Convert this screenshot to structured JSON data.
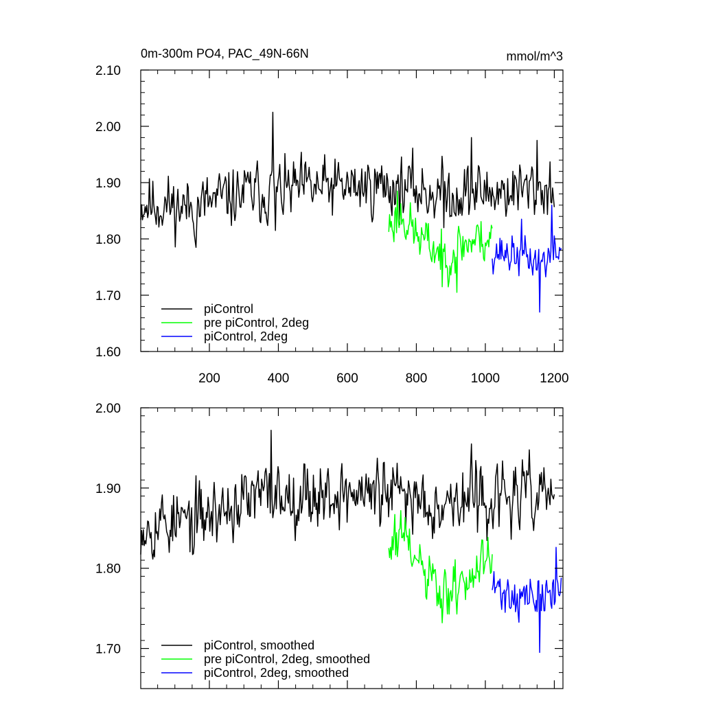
{
  "chart_data": [
    {
      "type": "line",
      "title": "0m-300m PO4, PAC_49N-66N",
      "units": "mmol/m^3",
      "xlim": [
        1,
        1225
      ],
      "ylim": [
        1.6,
        2.1
      ],
      "yticks": [
        "1.60",
        "1.70",
        "1.80",
        "1.90",
        "2.00",
        "2.10"
      ],
      "ytick_values": [
        1.6,
        1.7,
        1.8,
        1.9,
        2.0,
        2.1
      ],
      "xticks": [
        "200",
        "400",
        "600",
        "800",
        "1000",
        "1200"
      ],
      "xtick_values": [
        200,
        400,
        600,
        800,
        1000,
        1200
      ],
      "series": [
        {
          "name": "piControl",
          "color": "#000000",
          "x_start": 1,
          "x_end": 1200,
          "mean": 1.885,
          "amp": 0.038,
          "seed": 11,
          "trend": [
            [
              1,
              -0.02
            ],
            [
              150,
              -0.03
            ],
            [
              300,
              -0.005
            ],
            [
              400,
              0.0
            ],
            [
              700,
              0.01
            ],
            [
              900,
              -0.005
            ],
            [
              1200,
              0.005
            ]
          ],
          "peaks": [
            [
              383,
              2.025
            ],
            [
              160,
              1.785
            ],
            [
              392,
              1.815
            ],
            [
              960,
              1.98
            ],
            [
              1150,
              1.975
            ],
            [
              880,
              1.82
            ]
          ]
        },
        {
          "name": "pre piControl, 2deg",
          "color": "#00ff00",
          "x_start": 720,
          "x_end": 1020,
          "mean": 1.805,
          "amp": 0.03,
          "seed": 23,
          "trend": [
            [
              720,
              0.02
            ],
            [
              760,
              0.04
            ],
            [
              800,
              0.0
            ],
            [
              880,
              -0.035
            ],
            [
              950,
              -0.01
            ],
            [
              1020,
              0.0
            ]
          ],
          "peaks": [
            [
              745,
              1.885
            ],
            [
              875,
              1.715
            ],
            [
              918,
              1.705
            ]
          ]
        },
        {
          "name": "piControl, 2deg",
          "color": "#0000ff",
          "x_start": 1020,
          "x_end": 1220,
          "mean": 1.78,
          "amp": 0.025,
          "seed": 37,
          "trend": [
            [
              1020,
              0.0
            ],
            [
              1100,
              -0.01
            ],
            [
              1160,
              -0.02
            ],
            [
              1220,
              0.0
            ]
          ],
          "peaks": [
            [
              1157,
              1.67
            ],
            [
              1192,
              1.86
            ],
            [
              1105,
              1.835
            ]
          ]
        }
      ],
      "legend": [
        "piControl",
        "pre piControl, 2deg",
        "piControl, 2deg"
      ],
      "legend_position": "bottom-left"
    },
    {
      "type": "line",
      "title": "",
      "xlim": [
        1,
        1225
      ],
      "ylim": [
        1.65,
        2.0
      ],
      "yticks": [
        "1.70",
        "1.80",
        "1.90",
        "2.00"
      ],
      "ytick_values": [
        1.7,
        1.8,
        1.9,
        2.0
      ],
      "xticks": [],
      "xtick_values": [
        200,
        400,
        600,
        800,
        1000,
        1200
      ],
      "series": [
        {
          "name": "piControl, smoothed",
          "color": "#000000",
          "x_start": 1,
          "x_end": 1200,
          "mean": 1.888,
          "amp": 0.03,
          "seed": 53,
          "trend": [
            [
              1,
              -0.03
            ],
            [
              150,
              -0.03
            ],
            [
              300,
              -0.005
            ],
            [
              400,
              0.005
            ],
            [
              700,
              0.005
            ],
            [
              900,
              -0.005
            ],
            [
              1200,
              0.005
            ]
          ],
          "peaks": [
            [
              378,
              1.972
            ],
            [
              150,
              1.817
            ],
            [
              960,
              1.955
            ]
          ]
        },
        {
          "name": "pre piControl, 2deg, smoothed",
          "color": "#00ff00",
          "x_start": 720,
          "x_end": 1020,
          "mean": 1.8,
          "amp": 0.025,
          "seed": 61,
          "trend": [
            [
              720,
              0.02
            ],
            [
              760,
              0.04
            ],
            [
              800,
              0.005
            ],
            [
              880,
              -0.04
            ],
            [
              950,
              -0.01
            ],
            [
              1020,
              0.0
            ]
          ],
          "peaks": [
            [
              738,
              1.867
            ],
            [
              876,
              1.732
            ]
          ]
        },
        {
          "name": "piControl, 2deg, smoothed",
          "color": "#0000ff",
          "x_start": 1020,
          "x_end": 1220,
          "mean": 1.775,
          "amp": 0.02,
          "seed": 71,
          "trend": [
            [
              1020,
              0.0
            ],
            [
              1100,
              -0.01
            ],
            [
              1160,
              -0.015
            ],
            [
              1220,
              0.0
            ]
          ],
          "peaks": [
            [
              1157,
              1.695
            ],
            [
              1205,
              1.826
            ]
          ]
        }
      ],
      "legend": [
        "piControl, smoothed",
        "pre piControl, 2deg, smoothed",
        "piControl, 2deg, smoothed"
      ],
      "legend_position": "bottom-left"
    }
  ]
}
